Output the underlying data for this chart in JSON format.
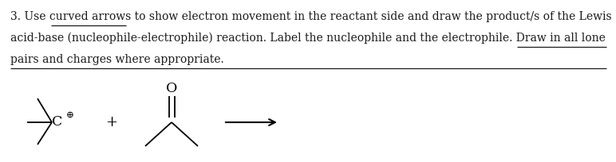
{
  "line1": "3. Use curved arrows to show electron movement in the reactant side and draw the product/s of the Lewis",
  "line2": "acid-base (nucleophile-electrophile) reaction. Label the nucleophile and the electrophile. Draw in all lone",
  "line3": "pairs and charges where appropriate.",
  "bg_color": "#ffffff",
  "text_color": "#1a1a1a",
  "font_size": 10.0,
  "fig_width": 7.72,
  "fig_height": 2.04,
  "dpi": 100
}
